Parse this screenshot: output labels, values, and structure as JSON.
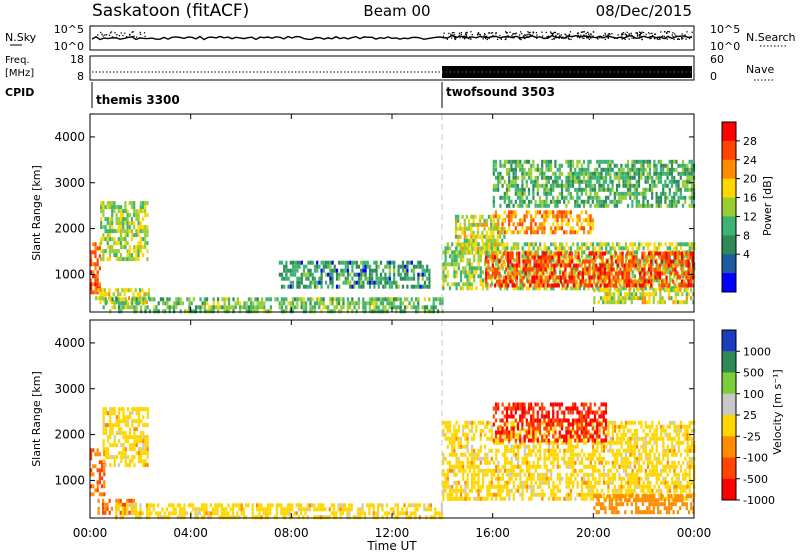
{
  "header": {
    "station": "Saskatoon (fitACF)",
    "beam": "Beam 00",
    "date": "08/Dec/2015"
  },
  "strip": {
    "nsky_label": "N.Sky",
    "nsearch_label": "N.Search",
    "nsky_ticks": [
      "10^5",
      "10^0"
    ],
    "nsearch_ticks": [
      "10^5",
      "10^0"
    ],
    "freq_label_1": "Freq.",
    "freq_label_2": "[MHz]",
    "freq_ticks": [
      "18",
      "8"
    ],
    "nave_label": "Nave",
    "nave_ticks": [
      "60",
      "0"
    ],
    "cpid_label": "CPID",
    "cpid_modes": [
      {
        "name": "themis 3300",
        "start_hour": 0
      },
      {
        "name": "twofsound 3503",
        "start_hour": 14
      }
    ]
  },
  "axes": {
    "xlabel": "Time UT",
    "x_ticks": [
      "00:00",
      "04:00",
      "08:00",
      "12:00",
      "16:00",
      "20:00",
      "00:00"
    ],
    "ylabel": "Slant Range [km]",
    "y_ticks": [
      "1000",
      "2000",
      "3000",
      "4000"
    ]
  },
  "colorbars": {
    "power": {
      "label": "Power [dB]",
      "ticks": [
        "28",
        "24",
        "20",
        "16",
        "12",
        "8",
        "4"
      ],
      "colors": [
        "#ff0000",
        "#ff4500",
        "#ff8c00",
        "#ffd700",
        "#9acd32",
        "#3cb371",
        "#2e8b57",
        "#1e5ca0",
        "#0000ff"
      ]
    },
    "velocity": {
      "label": "Velocity [m s⁻¹]",
      "ticks": [
        "1000",
        "500",
        "100",
        "25",
        "-25",
        "-100",
        "-500",
        "-1000"
      ],
      "colors": [
        "#1e3cbe",
        "#2e8b57",
        "#7ccd3a",
        "#c8c8c8",
        "#ffd700",
        "#ff8c00",
        "#ff4500",
        "#ff0000"
      ]
    }
  },
  "chart_data": [
    {
      "type": "heatmap",
      "title": "Power [dB]",
      "xlabel": "Time UT",
      "ylabel": "Slant Range [km]",
      "xlim": [
        0,
        24
      ],
      "ylim": [
        180,
        4500
      ],
      "x_unit": "hours UT",
      "regions": [
        {
          "x": [
            0.0,
            0.4
          ],
          "y": [
            600,
            1700
          ],
          "value": 24
        },
        {
          "x": [
            0.4,
            2.3
          ],
          "y": [
            1300,
            2600
          ],
          "value": 14
        },
        {
          "x": [
            0.2,
            2.3
          ],
          "y": [
            400,
            700
          ],
          "value": 16
        },
        {
          "x": [
            0.5,
            14.0
          ],
          "y": [
            200,
            500
          ],
          "value": 12
        },
        {
          "x": [
            7.5,
            13.5
          ],
          "y": [
            700,
            1300
          ],
          "value": 8
        },
        {
          "x": [
            14.0,
            24.0
          ],
          "y": [
            700,
            1700
          ],
          "value": 14
        },
        {
          "x": [
            15.7,
            24.0
          ],
          "y": [
            800,
            1500
          ],
          "value": 26
        },
        {
          "x": [
            16.0,
            20.0
          ],
          "y": [
            1900,
            2400
          ],
          "value": 22
        },
        {
          "x": [
            14.5,
            16.5
          ],
          "y": [
            1500,
            2300
          ],
          "value": 16
        },
        {
          "x": [
            16.0,
            24.0
          ],
          "y": [
            2500,
            3500
          ],
          "value": 10
        },
        {
          "x": [
            20.0,
            24.0
          ],
          "y": [
            400,
            700
          ],
          "value": 16
        }
      ]
    },
    {
      "type": "heatmap",
      "title": "Velocity [m s⁻¹]",
      "xlabel": "Time UT",
      "ylabel": "Slant Range [km]",
      "xlim": [
        0,
        24
      ],
      "ylim": [
        180,
        4500
      ],
      "x_unit": "hours UT",
      "regions": [
        {
          "x": [
            0.0,
            0.6
          ],
          "y": [
            700,
            1700
          ],
          "value": -100
        },
        {
          "x": [
            0.5,
            2.3
          ],
          "y": [
            1300,
            2600
          ],
          "value": 0
        },
        {
          "x": [
            0.3,
            1.8
          ],
          "y": [
            300,
            600
          ],
          "value": -100
        },
        {
          "x": [
            1.0,
            14.0
          ],
          "y": [
            200,
            500
          ],
          "value": 0
        },
        {
          "x": [
            14.0,
            24.0
          ],
          "y": [
            600,
            2300
          ],
          "value": 0
        },
        {
          "x": [
            16.0,
            20.5
          ],
          "y": [
            1900,
            2700
          ],
          "value": -500
        },
        {
          "x": [
            20.0,
            24.0
          ],
          "y": [
            300,
            700
          ],
          "value": -60
        }
      ]
    }
  ]
}
